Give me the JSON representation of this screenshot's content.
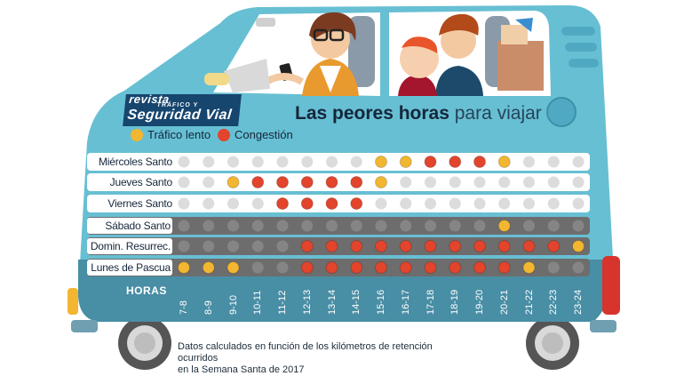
{
  "logo": {
    "line1": "revista",
    "line2": "TRÁFICO Y",
    "line3": "Seguridad Vial"
  },
  "title": {
    "bold": "Las peores horas",
    "light": "para viajar"
  },
  "legend": [
    {
      "label": "Tráfico lento",
      "color": "#f2b631"
    },
    {
      "label": "Congestión",
      "color": "#e2442c"
    }
  ],
  "colors": {
    "empty": "#dcdcdc",
    "empty_dark": "#858585",
    "slow": "#f2b631",
    "congestion": "#e2442c",
    "van_body": "#67bfd3",
    "van_lower": "#488ea5"
  },
  "chart_data": {
    "type": "table",
    "title": "Las peores horas para viajar",
    "xlabel": "HORAS",
    "categories": [
      "7-8",
      "8-9",
      "9-10",
      "10-11",
      "11-12",
      "12-13",
      "13-14",
      "14-15",
      "15-16",
      "16-17",
      "17-18",
      "18-19",
      "19-20",
      "20-21",
      "21-22",
      "22-23",
      "23-24"
    ],
    "legend": [
      "Tráfico lento",
      "Congestión"
    ],
    "rows": [
      {
        "name": "Miércoles Santo",
        "values": [
          0,
          0,
          0,
          0,
          0,
          0,
          0,
          0,
          1,
          1,
          2,
          2,
          2,
          1,
          0,
          0,
          0
        ]
      },
      {
        "name": "Jueves Santo",
        "values": [
          0,
          0,
          1,
          2,
          2,
          2,
          2,
          2,
          1,
          0,
          0,
          0,
          0,
          0,
          0,
          0,
          0
        ]
      },
      {
        "name": "Viernes Santo",
        "values": [
          0,
          0,
          0,
          0,
          2,
          2,
          2,
          2,
          0,
          0,
          0,
          0,
          0,
          0,
          0,
          0,
          0
        ]
      },
      {
        "name": "Sábado Santo",
        "values": [
          0,
          0,
          0,
          0,
          0,
          0,
          0,
          0,
          0,
          0,
          0,
          0,
          0,
          1,
          0,
          0,
          0
        ]
      },
      {
        "name": "Domin. Resurrec.",
        "values": [
          0,
          0,
          0,
          0,
          0,
          2,
          2,
          2,
          2,
          2,
          2,
          2,
          2,
          2,
          2,
          2,
          1
        ]
      },
      {
        "name": "Lunes de Pascua",
        "values": [
          1,
          1,
          1,
          0,
          0,
          2,
          2,
          2,
          2,
          2,
          2,
          2,
          2,
          2,
          1,
          0,
          0
        ]
      }
    ]
  },
  "footnote": {
    "line1": "Datos calculados en función de los kilómetros de retención ocurridos",
    "line2": "en la Semana Santa de 2017"
  }
}
